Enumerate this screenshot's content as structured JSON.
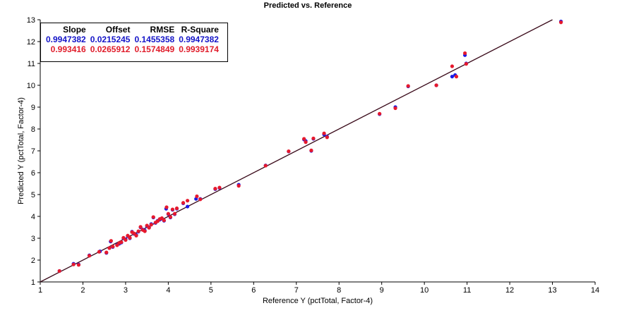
{
  "chart_data": {
    "type": "scatter",
    "title": "Predicted vs. Reference",
    "xlabel": "Reference Y (pctTotal, Factor-4)",
    "ylabel": "Predicted Y (pctTotal, Factor-4)",
    "xlim": [
      1,
      14
    ],
    "ylim": [
      1,
      13
    ],
    "xticks": [
      1,
      2,
      3,
      4,
      5,
      6,
      7,
      8,
      9,
      10,
      11,
      12,
      13,
      14
    ],
    "yticks": [
      1,
      2,
      3,
      4,
      5,
      6,
      7,
      8,
      9,
      10,
      11,
      12,
      13
    ],
    "colors": {
      "calibration": "#1a1ae6",
      "validation": "#e6192d",
      "line": "#3a0a1a"
    },
    "stats": {
      "headers": [
        "Slope",
        "Offset",
        "RMSE",
        "R-Square"
      ],
      "rows": [
        [
          "0.9947382",
          "0.0215245",
          "0.1455358",
          "0.9947382"
        ],
        [
          "0.993416",
          "0.0265912",
          "0.1574849",
          "0.9939174"
        ]
      ]
    },
    "series": [
      {
        "points": [
          [
            1.45,
            1.5
          ],
          [
            1.78,
            1.83
          ],
          [
            1.9,
            1.8
          ],
          [
            2.15,
            2.22
          ],
          [
            2.4,
            2.4
          ],
          [
            2.55,
            2.33
          ],
          [
            2.62,
            2.55
          ],
          [
            2.65,
            2.85
          ],
          [
            2.7,
            2.6
          ],
          [
            2.8,
            2.7
          ],
          [
            2.85,
            2.75
          ],
          [
            2.9,
            2.8
          ],
          [
            2.95,
            3.0
          ],
          [
            3.0,
            2.95
          ],
          [
            3.05,
            3.1
          ],
          [
            3.1,
            3.0
          ],
          [
            3.15,
            3.3
          ],
          [
            3.2,
            3.2
          ],
          [
            3.25,
            3.15
          ],
          [
            3.3,
            3.3
          ],
          [
            3.35,
            3.5
          ],
          [
            3.4,
            3.4
          ],
          [
            3.45,
            3.35
          ],
          [
            3.5,
            3.55
          ],
          [
            3.55,
            3.5
          ],
          [
            3.6,
            3.65
          ],
          [
            3.65,
            3.95
          ],
          [
            3.7,
            3.7
          ],
          [
            3.75,
            3.8
          ],
          [
            3.8,
            3.85
          ],
          [
            3.85,
            3.9
          ],
          [
            3.9,
            3.8
          ],
          [
            3.95,
            4.35
          ],
          [
            4.0,
            4.1
          ],
          [
            4.05,
            3.95
          ],
          [
            4.1,
            4.3
          ],
          [
            4.15,
            4.1
          ],
          [
            4.2,
            4.35
          ],
          [
            4.35,
            4.6
          ],
          [
            4.45,
            4.45
          ],
          [
            4.65,
            4.8
          ],
          [
            4.75,
            4.8
          ],
          [
            5.1,
            5.25
          ],
          [
            5.2,
            5.3
          ],
          [
            5.65,
            5.45
          ],
          [
            6.28,
            6.33
          ],
          [
            6.82,
            6.97
          ],
          [
            7.18,
            7.52
          ],
          [
            7.22,
            7.45
          ],
          [
            7.35,
            7.0
          ],
          [
            7.4,
            7.55
          ],
          [
            7.65,
            7.75
          ],
          [
            7.72,
            7.65
          ],
          [
            8.95,
            8.68
          ],
          [
            9.32,
            9.0
          ],
          [
            9.62,
            9.95
          ],
          [
            10.28,
            10.0
          ],
          [
            10.65,
            10.4
          ],
          [
            10.72,
            10.47
          ],
          [
            10.95,
            11.38
          ],
          [
            10.98,
            11.0
          ],
          [
            13.2,
            12.92
          ]
        ]
      },
      {
        "points": [
          [
            1.45,
            1.5
          ],
          [
            1.78,
            1.8
          ],
          [
            1.9,
            1.78
          ],
          [
            2.15,
            2.2
          ],
          [
            2.38,
            2.38
          ],
          [
            2.55,
            2.35
          ],
          [
            2.62,
            2.55
          ],
          [
            2.66,
            2.88
          ],
          [
            2.7,
            2.62
          ],
          [
            2.8,
            2.68
          ],
          [
            2.85,
            2.78
          ],
          [
            2.9,
            2.82
          ],
          [
            2.95,
            3.02
          ],
          [
            3.0,
            2.92
          ],
          [
            3.05,
            3.12
          ],
          [
            3.1,
            3.02
          ],
          [
            3.15,
            3.28
          ],
          [
            3.2,
            3.22
          ],
          [
            3.25,
            3.12
          ],
          [
            3.3,
            3.32
          ],
          [
            3.35,
            3.52
          ],
          [
            3.4,
            3.38
          ],
          [
            3.45,
            3.32
          ],
          [
            3.5,
            3.58
          ],
          [
            3.55,
            3.48
          ],
          [
            3.6,
            3.62
          ],
          [
            3.65,
            3.97
          ],
          [
            3.7,
            3.72
          ],
          [
            3.75,
            3.78
          ],
          [
            3.8,
            3.88
          ],
          [
            3.85,
            3.92
          ],
          [
            3.9,
            3.82
          ],
          [
            3.96,
            4.42
          ],
          [
            4.0,
            4.12
          ],
          [
            4.05,
            3.97
          ],
          [
            4.1,
            4.32
          ],
          [
            4.15,
            4.12
          ],
          [
            4.2,
            4.37
          ],
          [
            4.35,
            4.62
          ],
          [
            4.45,
            4.72
          ],
          [
            4.67,
            4.92
          ],
          [
            4.75,
            4.78
          ],
          [
            5.1,
            5.27
          ],
          [
            5.2,
            5.32
          ],
          [
            5.65,
            5.4
          ],
          [
            6.28,
            6.32
          ],
          [
            6.82,
            6.98
          ],
          [
            7.18,
            7.55
          ],
          [
            7.22,
            7.4
          ],
          [
            7.35,
            7.02
          ],
          [
            7.4,
            7.57
          ],
          [
            7.65,
            7.8
          ],
          [
            7.72,
            7.62
          ],
          [
            8.95,
            8.7
          ],
          [
            9.32,
            8.95
          ],
          [
            9.62,
            9.97
          ],
          [
            10.28,
            10.0
          ],
          [
            10.65,
            10.87
          ],
          [
            10.75,
            10.4
          ],
          [
            10.95,
            11.47
          ],
          [
            10.98,
            10.98
          ],
          [
            13.2,
            12.88
          ]
        ]
      }
    ],
    "regression_line": [
      [
        1,
        1
      ],
      [
        13,
        13
      ]
    ]
  }
}
